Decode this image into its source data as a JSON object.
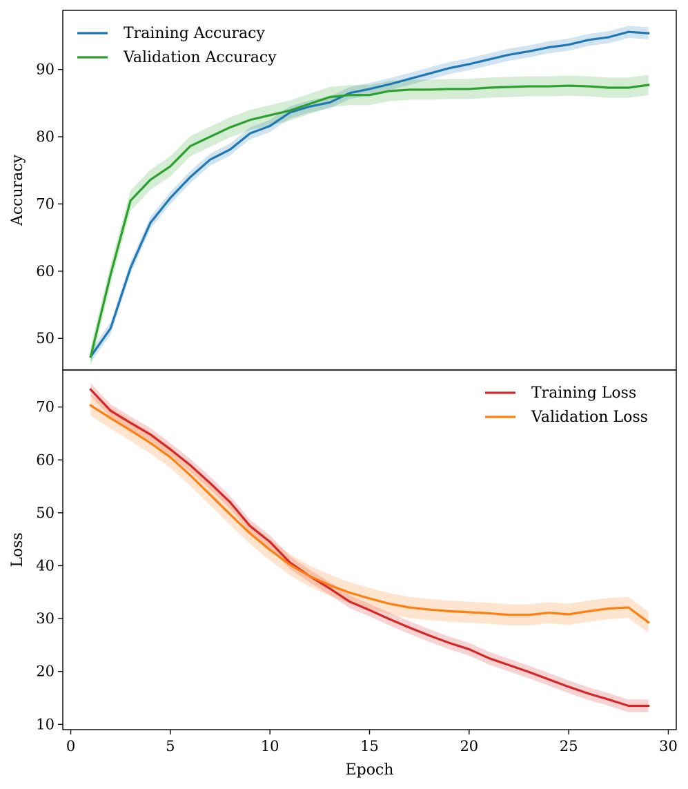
{
  "chart_data": [
    {
      "type": "line",
      "title": "",
      "xlabel": "",
      "ylabel": "Accuracy",
      "xlim": [
        -0.4,
        30.4
      ],
      "ylim": [
        45.3,
        98.8
      ],
      "yticks": [
        50,
        60,
        70,
        80,
        90
      ],
      "grid": false,
      "legend": "top-left",
      "x": [
        1,
        2,
        3,
        4,
        5,
        6,
        7,
        8,
        9,
        10,
        11,
        12,
        13,
        14,
        15,
        16,
        17,
        18,
        19,
        20,
        21,
        22,
        23,
        24,
        25,
        26,
        27,
        28,
        29
      ],
      "series": [
        {
          "name": "Training Accuracy",
          "color": "#1f77b4",
          "values": [
            47.3,
            51.5,
            60.5,
            67.2,
            70.9,
            74.0,
            76.6,
            78.1,
            80.5,
            81.6,
            83.6,
            84.5,
            85.1,
            86.5,
            87.1,
            87.8,
            88.6,
            89.4,
            90.2,
            90.8,
            91.5,
            92.2,
            92.7,
            93.3,
            93.7,
            94.4,
            94.8,
            95.6,
            95.4
          ],
          "band": 0.9
        },
        {
          "name": "Validation Accuracy",
          "color": "#2ca02c",
          "values": [
            47.3,
            59.5,
            70.5,
            73.6,
            75.6,
            78.6,
            80.0,
            81.4,
            82.5,
            83.2,
            83.9,
            84.9,
            85.9,
            86.2,
            86.2,
            86.8,
            87.0,
            87.0,
            87.1,
            87.1,
            87.3,
            87.4,
            87.5,
            87.5,
            87.6,
            87.5,
            87.3,
            87.3,
            87.7
          ],
          "band": 1.5
        }
      ]
    },
    {
      "type": "line",
      "title": "",
      "xlabel": "Epoch",
      "ylabel": "Loss",
      "xlim": [
        -0.4,
        30.4
      ],
      "ylim": [
        9.0,
        77.0
      ],
      "xticks": [
        0,
        5,
        10,
        15,
        20,
        25,
        30
      ],
      "yticks": [
        10,
        20,
        30,
        40,
        50,
        60,
        70
      ],
      "grid": false,
      "legend": "top-right",
      "x": [
        1,
        2,
        3,
        4,
        5,
        6,
        7,
        8,
        9,
        10,
        11,
        12,
        13,
        14,
        15,
        16,
        17,
        18,
        19,
        20,
        21,
        22,
        23,
        24,
        25,
        26,
        27,
        28,
        29
      ],
      "series": [
        {
          "name": "Training Loss",
          "color": "#d62728",
          "values": [
            73.3,
            69.3,
            67.0,
            64.8,
            62.0,
            59.0,
            55.6,
            52.0,
            47.5,
            44.5,
            40.6,
            38.0,
            35.7,
            33.2,
            31.6,
            29.9,
            28.3,
            26.8,
            25.4,
            24.2,
            22.5,
            21.2,
            19.9,
            18.5,
            17.1,
            15.8,
            14.7,
            13.5,
            13.5
          ],
          "band": 1.2
        },
        {
          "name": "Validation Loss",
          "color": "#ff7f0e",
          "values": [
            70.3,
            67.9,
            65.6,
            63.2,
            60.5,
            57.1,
            53.4,
            49.7,
            46.1,
            43.0,
            40.2,
            38.0,
            36.3,
            34.9,
            33.8,
            32.8,
            32.1,
            31.7,
            31.4,
            31.2,
            31.0,
            30.7,
            30.7,
            31.1,
            30.8,
            31.4,
            31.9,
            32.1,
            29.3
          ],
          "band": 2.0
        }
      ]
    }
  ]
}
